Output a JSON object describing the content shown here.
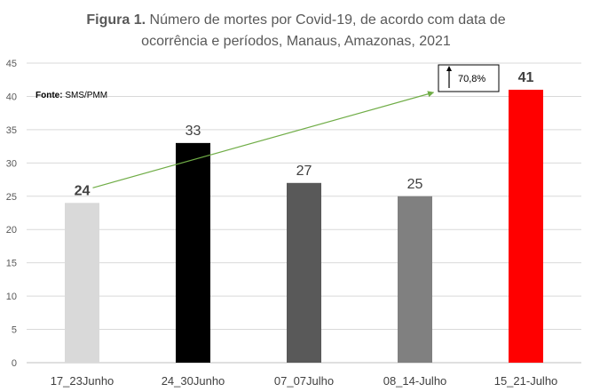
{
  "chart_data": {
    "type": "bar",
    "title_bold": "Figura 1.",
    "title_line1": " Número de mortes por Covid-19, de acordo com data de",
    "title_line2": "ocorrência e períodos, Manaus, Amazonas, 2021",
    "source_label": "Fonte:",
    "source_value": " SMS/PMM",
    "categories": [
      "17_23Junho",
      "24_30Junho",
      "07_07Julho",
      "08_14-Julho",
      "15_21-Julho"
    ],
    "values": [
      24,
      33,
      27,
      25,
      41
    ],
    "bar_colors": [
      "#d9d9d9",
      "#000000",
      "#595959",
      "#808080",
      "#ff0000"
    ],
    "bold_labels": [
      true,
      false,
      false,
      false,
      true
    ],
    "ylim": [
      0,
      45
    ],
    "yticks": [
      0,
      5,
      10,
      15,
      20,
      25,
      30,
      35,
      40,
      45
    ],
    "grid": true,
    "annotation": {
      "text": "70,8%",
      "from_category": "17_23Junho",
      "to_category": "15_21-Julho",
      "arrow_color": "#70ad47"
    }
  }
}
